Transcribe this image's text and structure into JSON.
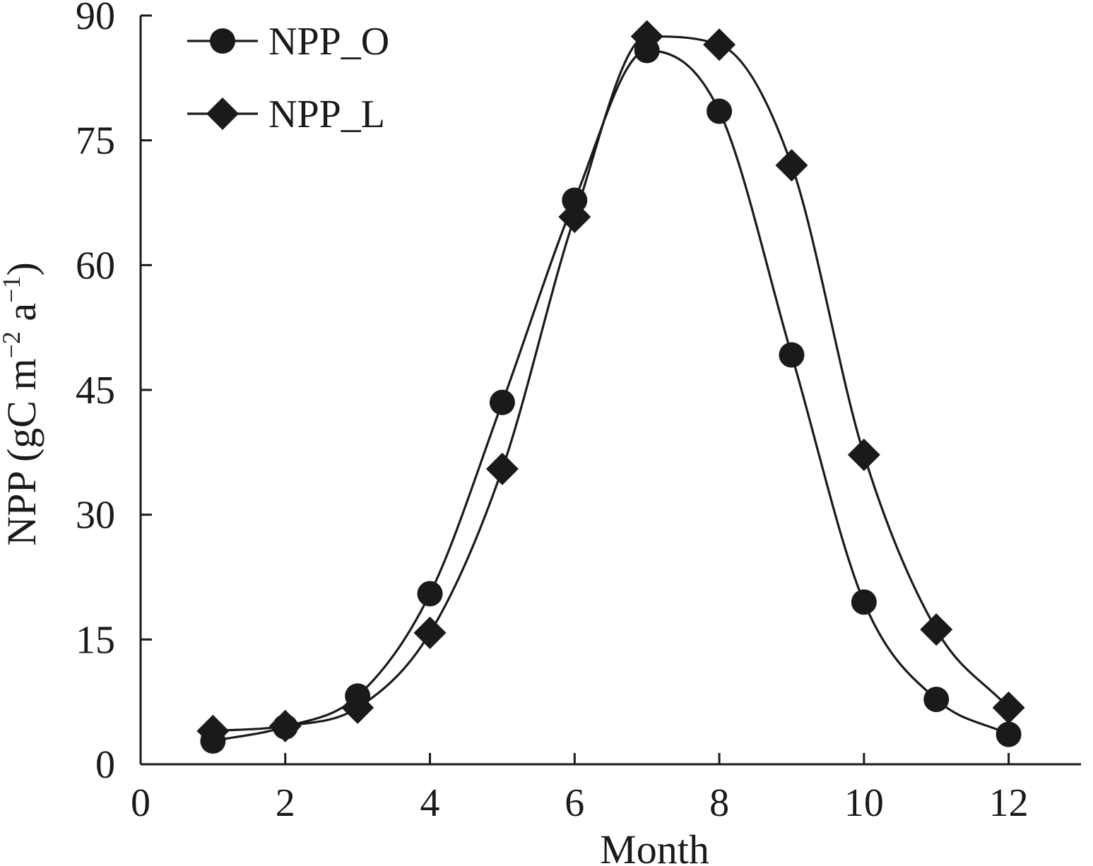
{
  "chart_data": {
    "type": "line",
    "xlabel": "Month",
    "ylabel": {
      "main": "NPP (gC m",
      "sup1": "−2",
      "mid": " a",
      "sup2": "−1",
      "end": ")"
    },
    "xlim": [
      0,
      13
    ],
    "ylim": [
      0,
      90
    ],
    "xticks": [
      0,
      2,
      4,
      6,
      8,
      10,
      12
    ],
    "yticks": [
      0,
      15,
      30,
      45,
      60,
      75,
      90
    ],
    "grid": false,
    "legend_position": "top-left",
    "x": [
      1,
      2,
      3,
      4,
      5,
      6,
      7,
      8,
      9,
      10,
      11,
      12
    ],
    "series": [
      {
        "name": "NPP_O",
        "marker": "circle",
        "color": "#1a1a1a",
        "values": [
          2.8,
          4.5,
          8.2,
          20.5,
          43.5,
          67.8,
          85.8,
          78.5,
          49.2,
          19.5,
          7.8,
          3.6
        ]
      },
      {
        "name": "NPP_L",
        "marker": "diamond",
        "color": "#1a1a1a",
        "values": [
          4.0,
          4.6,
          6.8,
          15.8,
          35.5,
          65.8,
          87.5,
          86.5,
          72.0,
          37.2,
          16.2,
          6.8
        ]
      }
    ]
  }
}
